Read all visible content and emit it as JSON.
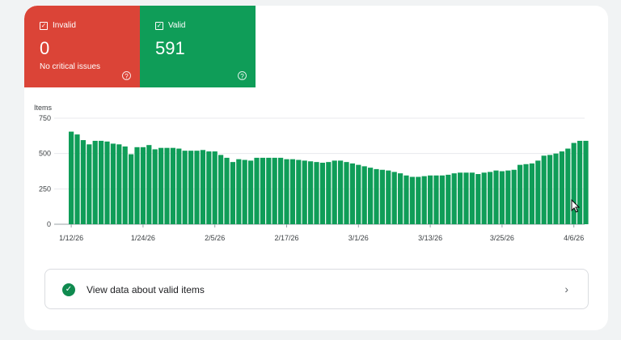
{
  "status_tiles": [
    {
      "label": "Invalid",
      "count": "0",
      "subtitle": "No critical issues",
      "color": "#db4437",
      "checked": true
    },
    {
      "label": "Valid",
      "count": "591",
      "subtitle": "",
      "color": "#0f9d58",
      "checked": true
    }
  ],
  "help_icon_glyph": "?",
  "checkbox_glyph": "✓",
  "view_link": {
    "label": "View data about valid items",
    "icon": "check-circle-icon",
    "chevron": "›"
  },
  "chart_data": {
    "type": "bar",
    "ylabel": "Items",
    "ylim": [
      0,
      750
    ],
    "yticks": [
      0,
      250,
      500,
      750
    ],
    "x_tick_labels": [
      "1/12/26",
      "1/24/26",
      "2/5/26",
      "2/17/26",
      "3/1/26",
      "3/13/26",
      "3/25/26",
      "4/6/26"
    ],
    "x_tick_indices": [
      0,
      12,
      24,
      36,
      48,
      60,
      72,
      84
    ],
    "bar_color": "#0f9d58",
    "grid": true,
    "values": [
      655,
      635,
      595,
      565,
      590,
      590,
      585,
      570,
      565,
      550,
      495,
      545,
      545,
      560,
      530,
      540,
      540,
      540,
      535,
      520,
      520,
      520,
      525,
      515,
      515,
      490,
      470,
      440,
      460,
      455,
      450,
      470,
      470,
      470,
      470,
      470,
      460,
      460,
      455,
      450,
      445,
      440,
      435,
      440,
      450,
      450,
      440,
      430,
      420,
      410,
      400,
      390,
      385,
      380,
      370,
      360,
      345,
      335,
      335,
      340,
      345,
      345,
      345,
      350,
      360,
      365,
      365,
      365,
      355,
      365,
      370,
      380,
      375,
      380,
      385,
      420,
      425,
      430,
      450,
      485,
      490,
      500,
      515,
      535,
      575,
      590,
      590
    ]
  }
}
